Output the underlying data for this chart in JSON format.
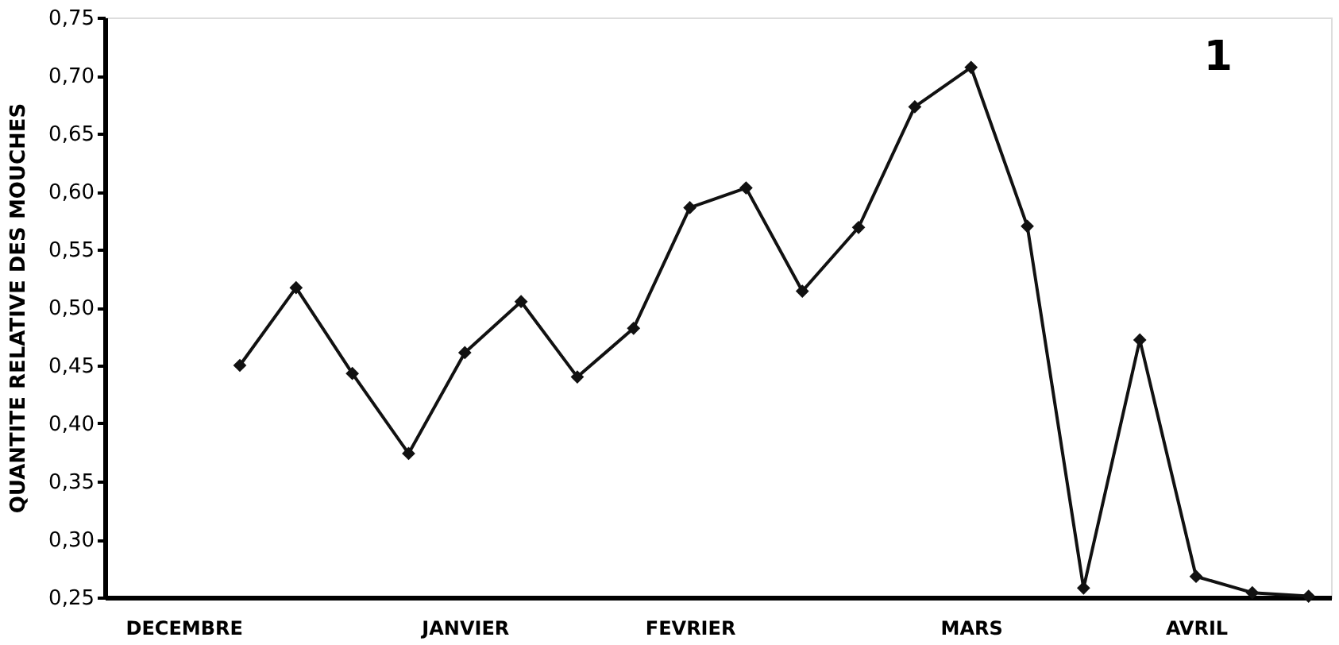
{
  "chart_data": {
    "type": "line",
    "ylabel": "QUANTITE RELATIVE DES MOUCHES",
    "annotations": [
      "1"
    ],
    "categories": [
      null,
      "DECEMBRE",
      null,
      null,
      null,
      null,
      "JANVIER",
      null,
      null,
      null,
      "FEVRIER",
      null,
      null,
      null,
      null,
      "MARS",
      null,
      null,
      null,
      "AVRIL",
      null,
      null
    ],
    "values": [
      null,
      null,
      0.45,
      0.517,
      0.443,
      0.374,
      0.461,
      0.505,
      0.44,
      0.482,
      0.586,
      0.603,
      0.514,
      0.569,
      0.673,
      0.707,
      0.57,
      0.258,
      0.472,
      0.268,
      0.254,
      0.251
    ],
    "color": "#111111",
    "ylim": [
      0.25,
      0.75
    ],
    "yticks": [
      {
        "value": 0.25,
        "label": "0,25"
      },
      {
        "value": 0.3,
        "label": "0,30"
      },
      {
        "value": 0.35,
        "label": "0,35"
      },
      {
        "value": 0.4,
        "label": "0,40"
      },
      {
        "value": 0.45,
        "label": "0,45"
      },
      {
        "value": 0.5,
        "label": "0,50"
      },
      {
        "value": 0.55,
        "label": "0,55"
      },
      {
        "value": 0.6,
        "label": "0,60"
      },
      {
        "value": 0.65,
        "label": "0,65"
      },
      {
        "value": 0.7,
        "label": "0,70"
      },
      {
        "value": 0.75,
        "label": "0,75"
      }
    ],
    "grid": false,
    "marker": "diamond",
    "line_style": "solid"
  }
}
